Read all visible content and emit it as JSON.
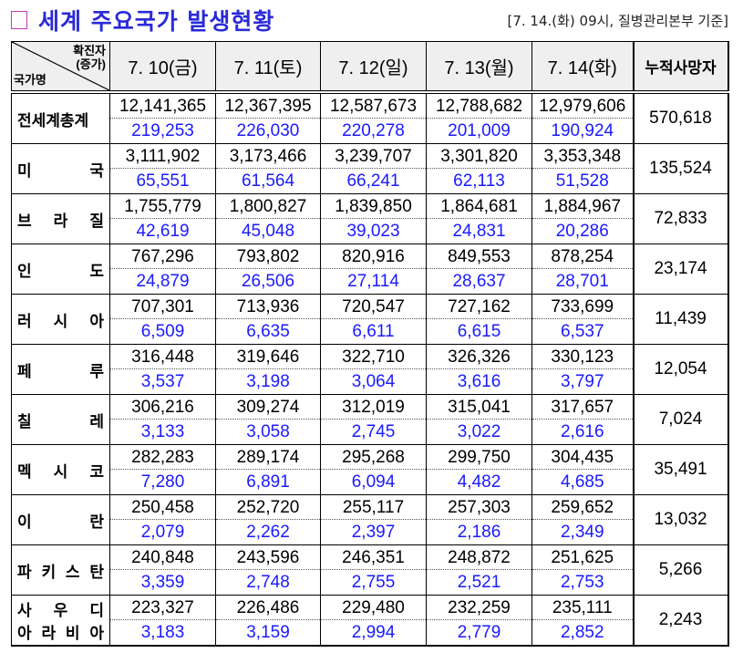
{
  "title": "세계 주요국가 발생현황",
  "source": "[7. 14.(화) 09시, 질병관리본부 기준]",
  "header": {
    "corner_top": "확진자",
    "corner_top2": "(증가)",
    "corner_bottom": "국가명",
    "dates": [
      "7. 10(금)",
      "7. 11(토)",
      "7. 12(일)",
      "7. 13(월)",
      "7. 14(화)"
    ],
    "deaths": "누적사망자"
  },
  "colors": {
    "title": "#2a2ad8",
    "increase": "#1a1aff"
  },
  "rows": [
    {
      "name": [
        "전세계총계"
      ],
      "totals": [
        "12,141,365",
        "12,367,395",
        "12,587,673",
        "12,788,682",
        "12,979,606"
      ],
      "increases": [
        "219,253",
        "226,030",
        "220,278",
        "201,009",
        "190,924"
      ],
      "deaths": "570,618"
    },
    {
      "name": [
        "미 국"
      ],
      "totals": [
        "3,111,902",
        "3,173,466",
        "3,239,707",
        "3,301,820",
        "3,353,348"
      ],
      "increases": [
        "65,551",
        "61,564",
        "66,241",
        "62,113",
        "51,528"
      ],
      "deaths": "135,524"
    },
    {
      "name": [
        "브 라 질"
      ],
      "totals": [
        "1,755,779",
        "1,800,827",
        "1,839,850",
        "1,864,681",
        "1,884,967"
      ],
      "increases": [
        "42,619",
        "45,048",
        "39,023",
        "24,831",
        "20,286"
      ],
      "deaths": "72,833"
    },
    {
      "name": [
        "인 도"
      ],
      "totals": [
        "767,296",
        "793,802",
        "820,916",
        "849,553",
        "878,254"
      ],
      "increases": [
        "24,879",
        "26,506",
        "27,114",
        "28,637",
        "28,701"
      ],
      "deaths": "23,174"
    },
    {
      "name": [
        "러 시 아"
      ],
      "totals": [
        "707,301",
        "713,936",
        "720,547",
        "727,162",
        "733,699"
      ],
      "increases": [
        "6,509",
        "6,635",
        "6,611",
        "6,615",
        "6,537"
      ],
      "deaths": "11,439"
    },
    {
      "name": [
        "페 루"
      ],
      "totals": [
        "316,448",
        "319,646",
        "322,710",
        "326,326",
        "330,123"
      ],
      "increases": [
        "3,537",
        "3,198",
        "3,064",
        "3,616",
        "3,797"
      ],
      "deaths": "12,054"
    },
    {
      "name": [
        "칠 레"
      ],
      "totals": [
        "306,216",
        "309,274",
        "312,019",
        "315,041",
        "317,657"
      ],
      "increases": [
        "3,133",
        "3,058",
        "2,745",
        "3,022",
        "2,616"
      ],
      "deaths": "7,024"
    },
    {
      "name": [
        "멕 시 코"
      ],
      "totals": [
        "282,283",
        "289,174",
        "295,268",
        "299,750",
        "304,435"
      ],
      "increases": [
        "7,280",
        "6,891",
        "6,094",
        "4,482",
        "4,685"
      ],
      "deaths": "35,491"
    },
    {
      "name": [
        "이 란"
      ],
      "totals": [
        "250,458",
        "252,720",
        "255,117",
        "257,303",
        "259,652"
      ],
      "increases": [
        "2,079",
        "2,262",
        "2,397",
        "2,186",
        "2,349"
      ],
      "deaths": "13,032"
    },
    {
      "name": [
        "파 키 스 탄"
      ],
      "totals": [
        "240,848",
        "243,596",
        "246,351",
        "248,872",
        "251,625"
      ],
      "increases": [
        "3,359",
        "2,748",
        "2,755",
        "2,521",
        "2,753"
      ],
      "deaths": "5,266"
    },
    {
      "name": [
        "사 우 디",
        "아 라 비 아"
      ],
      "totals": [
        "223,327",
        "226,486",
        "229,480",
        "232,259",
        "235,111"
      ],
      "increases": [
        "3,183",
        "3,159",
        "2,994",
        "2,779",
        "2,852"
      ],
      "deaths": "2,243"
    }
  ]
}
